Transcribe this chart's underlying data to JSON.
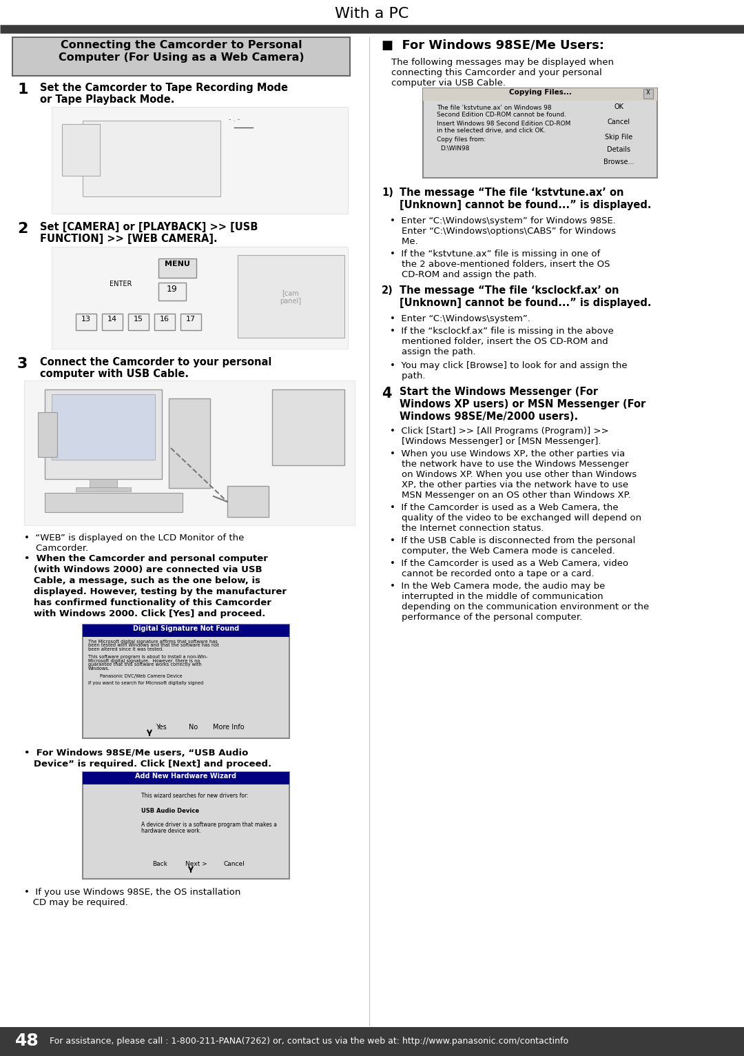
{
  "page_bg": "#ffffff",
  "header_text": "With a PC",
  "bar_color": "#3a3a3a",
  "footer_number": "48",
  "footer_text": "For assistance, please call : 1-800-211-PANA(7262) or, contact us via the web at: http://www.panasonic.com/contactinfo",
  "left_box_title_line1": "Connecting the Camcorder to Personal",
  "left_box_title_line2": "Computer (For Using as a Web Camera)",
  "left_box_bg": "#c8c8c8",
  "left_box_border": "#666666",
  "step1_num": "1",
  "step1_text_bold": "Set the Camcorder to Tape Recording Mode\nor Tape Playback Mode.",
  "step2_num": "2",
  "step2_text_bold": "Set [CAMERA] or [PLAYBACK] >> [USB\nFUNCTION] >> [WEB CAMERA].",
  "step3_num": "3",
  "step3_text_bold": "Connect the Camcorder to your personal\ncomputer with USB Cable.",
  "bullet_web": "•  “WEB” is displayed on the LCD Monitor of the\n    Camcorder.",
  "bullet_win2000_line1": "•  When the Camcorder and personal computer",
  "bullet_win2000_line2": "   (with Windows 2000) are connected via USB",
  "bullet_win2000_line3": "   Cable, a message, such as the one below, is",
  "bullet_win2000_line4": "   displayed. However, testing by the manufacturer",
  "bullet_win2000_line5": "   has confirmed functionality of this Camcorder",
  "bullet_win2000_line6": "   with Windows 2000. Click [Yes] and proceed.",
  "bullet_usbaudio_line1": "•  For Windows 98SE/Me users, “USB Audio",
  "bullet_usbaudio_line2": "   Device” is required. Click [Next] and proceed.",
  "bullet_win98se": "•  If you use Windows 98SE, the OS installation\n   CD may be required.",
  "right_title": "■  For Windows 98SE/Me Users:",
  "right_intro_line1": "The following messages may be displayed when",
  "right_intro_line2": "connecting this Camcorder and your personal",
  "right_intro_line3": "computer via USB Cable.",
  "r1_num": "1)",
  "r1_bold1": "The message “The file ‘kstvtune.ax’ on",
  "r1_bold2": "[Unknown] cannot be found...” is displayed.",
  "r1_b1_l1": "•  Enter “C:\\Windows\\system” for Windows 98SE.",
  "r1_b1_l2": "    Enter “C:\\Windows\\options\\CABS” for Windows",
  "r1_b1_l3": "    Me.",
  "r1_b2_l1": "•  If the “kstvtune.ax” file is missing in one of",
  "r1_b2_l2": "    the 2 above-mentioned folders, insert the OS",
  "r1_b2_l3": "    CD-ROM and assign the path.",
  "r2_num": "2)",
  "r2_bold1": "The message “The file ‘ksclockf.ax’ on",
  "r2_bold2": "[Unknown] cannot be found...” is displayed.",
  "r2_b1": "•  Enter “C:\\Windows\\system”.",
  "r2_b2_l1": "•  If the “ksclockf.ax” file is missing in the above",
  "r2_b2_l2": "    mentioned folder, insert the OS CD-ROM and",
  "r2_b2_l3": "    assign the path.",
  "r_browse_l1": "•  You may click [Browse] to look for and assign the",
  "r_browse_l2": "    path.",
  "r4_num": "4",
  "r4_bold1": "Start the Windows Messenger (For",
  "r4_bold2": "Windows XP users) or MSN Messenger (For",
  "r4_bold3": "Windows 98SE/Me/2000 users).",
  "r4_b1_l1": "•  Click [Start] >> [All Programs (Program)] >>",
  "r4_b1_l2": "    [Windows Messenger] or [MSN Messenger].",
  "r4_b2_l1": "•  When you use Windows XP, the other parties via",
  "r4_b2_l2": "    the network have to use the Windows Messenger",
  "r4_b2_l3": "    on Windows XP. When you use other than Windows",
  "r4_b2_l4": "    XP, the other parties via the network have to use",
  "r4_b2_l5": "    MSN Messenger on an OS other than Windows XP.",
  "r4_b3_l1": "•  If the Camcorder is used as a Web Camera, the",
  "r4_b3_l2": "    quality of the video to be exchanged will depend on",
  "r4_b3_l3": "    the Internet connection status.",
  "r4_b4_l1": "•  If the USB Cable is disconnected from the personal",
  "r4_b4_l2": "    computer, the Web Camera mode is canceled.",
  "r4_b5_l1": "•  If the Camcorder is used as a Web Camera, video",
  "r4_b5_l2": "    cannot be recorded onto a tape or a card.",
  "r4_b6_l1": "•  In the Web Camera mode, the audio may be",
  "r4_b6_l2": "    interrupted in the middle of communication",
  "r4_b6_l3": "    depending on the communication environment or the",
  "r4_b6_l4": "    performance of the personal computer."
}
